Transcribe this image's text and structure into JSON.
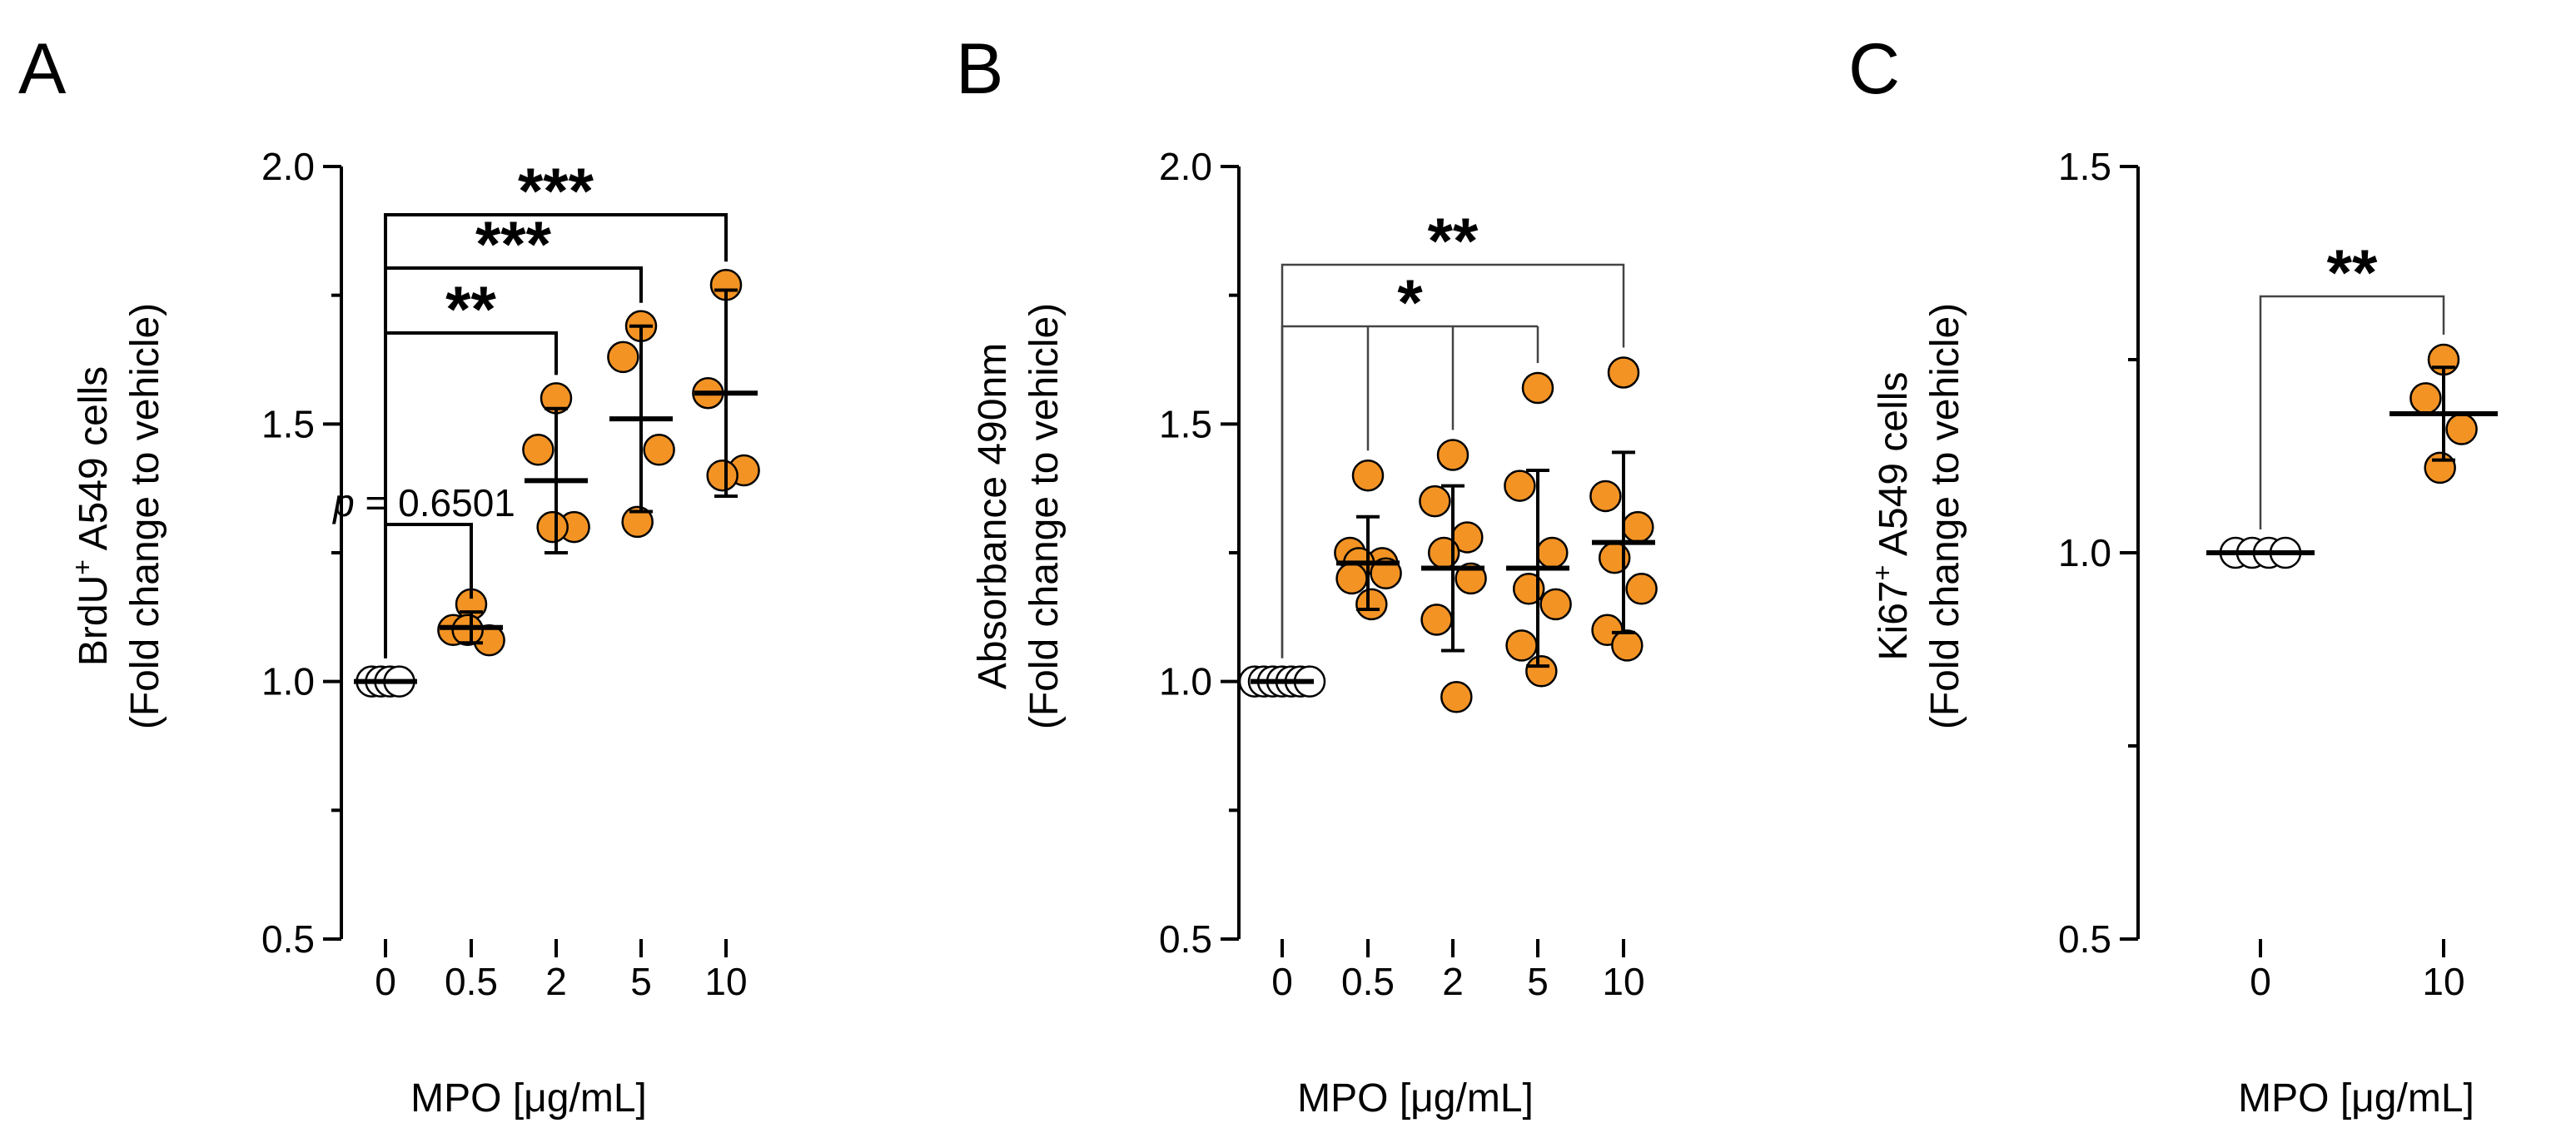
{
  "colors": {
    "dot": "#f39324",
    "axis": "#000000"
  },
  "x_axis_label": "MPO [μg/mL]",
  "chart_data": [
    {
      "type": "scatter",
      "panel_label": "A",
      "ylabel_line1": "BrdU",
      "ylabel_sup": "+",
      "ylabel_line1_rest": " A549 cells",
      "ylabel_line2": "(Fold change to vehicle)",
      "xlabel": "MPO [μg/mL]",
      "categories": [
        "0",
        "0.5",
        "2",
        "5",
        "10"
      ],
      "ylim": [
        0.5,
        2.0
      ],
      "yticks": [
        0.5,
        1.0,
        1.5,
        2.0
      ],
      "ytick_labels": [
        "0.5",
        "1.0",
        "1.5",
        "2.0"
      ],
      "series": [
        {
          "category": "0",
          "points": [
            1.0,
            1.0,
            1.0,
            1.0
          ],
          "mean": 1.0,
          "sd": 0.0,
          "open": true
        },
        {
          "category": "0.5",
          "points": [
            1.15,
            1.1,
            1.08,
            1.1
          ],
          "mean": 1.105,
          "sd": 0.03,
          "open": false
        },
        {
          "category": "2",
          "points": [
            1.55,
            1.45,
            1.3,
            1.3
          ],
          "mean": 1.39,
          "sd": 0.14,
          "open": false
        },
        {
          "category": "5",
          "points": [
            1.69,
            1.63,
            1.45,
            1.31
          ],
          "mean": 1.51,
          "sd": 0.18,
          "open": false
        },
        {
          "category": "10",
          "points": [
            1.77,
            1.56,
            1.41,
            1.4
          ],
          "mean": 1.56,
          "sd": 0.2,
          "open": false
        }
      ],
      "annotations": [
        {
          "label": "***",
          "from": "0",
          "to": "10"
        },
        {
          "label": "***",
          "from": "0",
          "to": "5"
        },
        {
          "label": "**",
          "from": "0",
          "to": "2"
        },
        {
          "label_italic": "p",
          "label": " = 0.6501",
          "from": "0",
          "to": "0.5"
        }
      ]
    },
    {
      "type": "scatter",
      "panel_label": "B",
      "ylabel_line1": "Absorbance 490nm",
      "ylabel_line2": "(Fold  change to vehicle)",
      "xlabel": "MPO [μg/mL]",
      "categories": [
        "0",
        "0.5",
        "2",
        "5",
        "10"
      ],
      "ylim": [
        0.5,
        2.0
      ],
      "yticks": [
        0.5,
        1.0,
        1.5,
        2.0
      ],
      "ytick_labels": [
        "0.5",
        "1.0",
        "1.5",
        "2.0"
      ],
      "series": [
        {
          "category": "0",
          "points": [
            1.0,
            1.0,
            1.0,
            1.0,
            1.0,
            1.0,
            1.0
          ],
          "mean": 1.0,
          "sd": 0.0,
          "open": true
        },
        {
          "category": "0.5",
          "points": [
            1.4,
            1.25,
            1.23,
            1.23,
            1.21,
            1.2,
            1.15
          ],
          "mean": 1.23,
          "sd": 0.09,
          "open": false
        },
        {
          "category": "2",
          "points": [
            1.44,
            1.35,
            1.28,
            1.25,
            1.2,
            1.12,
            0.97
          ],
          "mean": 1.22,
          "sd": 0.16,
          "open": false
        },
        {
          "category": "5",
          "points": [
            1.57,
            1.38,
            1.25,
            1.18,
            1.15,
            1.07,
            1.02
          ],
          "mean": 1.22,
          "sd": 0.19,
          "open": false
        },
        {
          "category": "10",
          "points": [
            1.6,
            1.36,
            1.3,
            1.24,
            1.18,
            1.1,
            1.07
          ],
          "mean": 1.27,
          "sd": 0.175,
          "open": false
        }
      ],
      "annotations": [
        {
          "label": "**",
          "from": "0",
          "to": "10"
        },
        {
          "label": "*",
          "from": "0",
          "to": "5",
          "drops": [
            "0.5",
            "2",
            "5"
          ]
        }
      ]
    },
    {
      "type": "scatter",
      "panel_label": "C",
      "ylabel_line1": "Ki67",
      "ylabel_sup": "+",
      "ylabel_line1_rest": " A549 cells",
      "ylabel_line2": "(Fold change to vehicle)",
      "xlabel": "MPO [μg/mL]",
      "categories": [
        "0",
        "10"
      ],
      "ylim": [
        0.5,
        1.5
      ],
      "yticks": [
        0.5,
        1.0,
        1.5
      ],
      "ytick_labels": [
        "0.5",
        "1.0",
        "1.5"
      ],
      "series": [
        {
          "category": "0",
          "points": [
            1.0,
            1.0,
            1.0,
            1.0
          ],
          "mean": 1.0,
          "sd": 0.0,
          "open": true
        },
        {
          "category": "10",
          "points": [
            1.25,
            1.2,
            1.16,
            1.11
          ],
          "mean": 1.18,
          "sd": 0.06,
          "open": false
        }
      ],
      "annotations": [
        {
          "label": "**",
          "from": "0",
          "to": "10"
        }
      ]
    }
  ]
}
